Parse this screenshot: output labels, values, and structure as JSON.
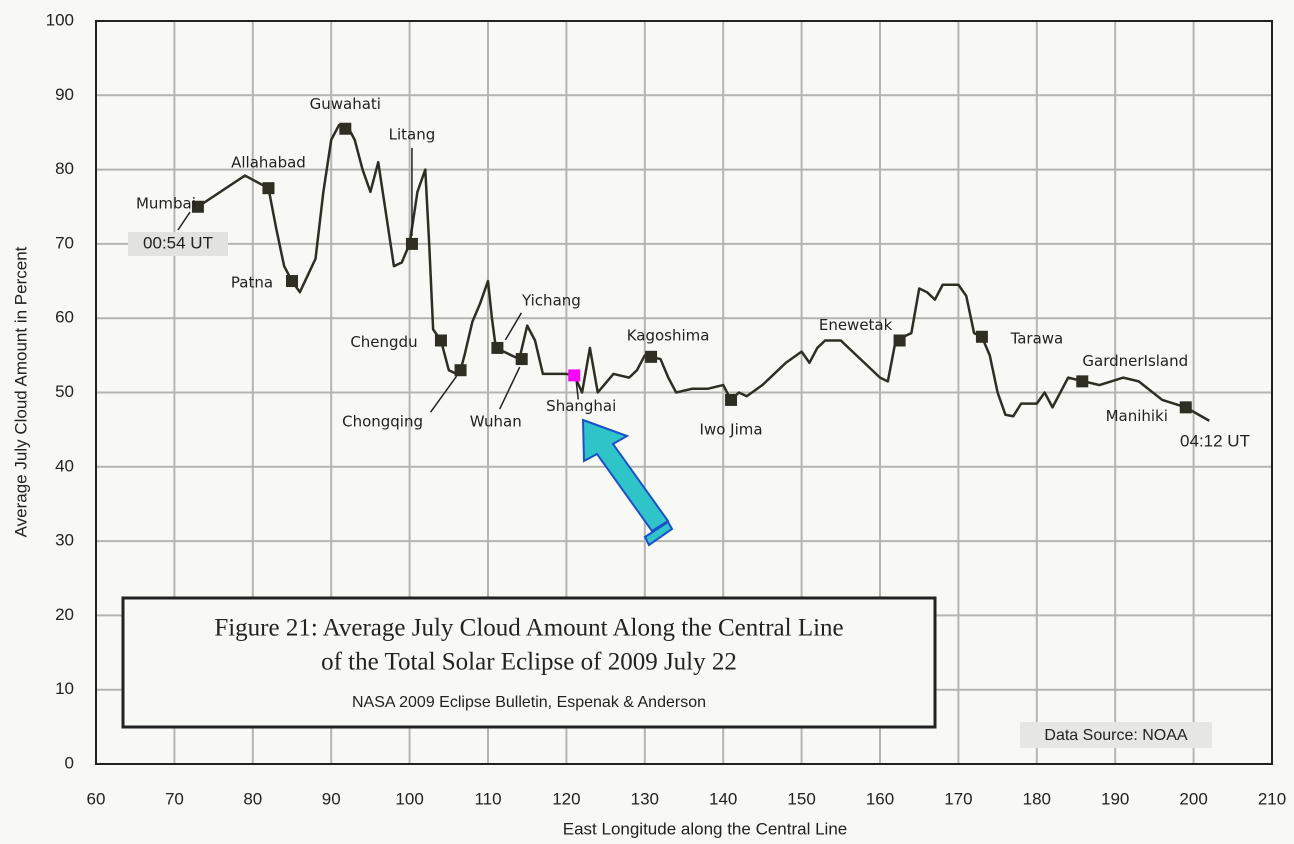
{
  "chart_data": {
    "type": "line",
    "xlabel": "East Longitude along the Central Line",
    "ylabel": "Average July Cloud Amount in Percent",
    "xlim": [
      60,
      210
    ],
    "xticks": [
      60,
      70,
      80,
      90,
      100,
      110,
      120,
      130,
      140,
      150,
      160,
      170,
      180,
      190,
      200,
      210
    ],
    "ylim": [
      0,
      100
    ],
    "yticks": [
      0,
      10,
      20,
      30,
      40,
      50,
      60,
      70,
      80,
      90,
      100
    ],
    "grid": true,
    "x": [
      73,
      79,
      82,
      83,
      84,
      85,
      86,
      88,
      89,
      90,
      91,
      92,
      93,
      94,
      95,
      96,
      97,
      98,
      99,
      100,
      101,
      102,
      102.5,
      103,
      104,
      105,
      106,
      106.5,
      107,
      108,
      109,
      110,
      110.5,
      111,
      112,
      113,
      114,
      115,
      116,
      117,
      120,
      121,
      122,
      123,
      124,
      126,
      128,
      129,
      130,
      132,
      133,
      134,
      136,
      138,
      140,
      141,
      142,
      143,
      145,
      147,
      148,
      150,
      151,
      152,
      153,
      155,
      157,
      158,
      160,
      161,
      162,
      163,
      164,
      165,
      166,
      167,
      168,
      170,
      171,
      172,
      173,
      174,
      175,
      176,
      177,
      178,
      180,
      181,
      182,
      184,
      186,
      188,
      191,
      193,
      196,
      199,
      202
    ],
    "series": [
      {
        "color": "#2e2e22",
        "values": [
          75,
          79.2,
          77.5,
          72,
          67,
          65,
          63.5,
          68,
          77,
          84,
          86,
          86,
          84,
          80,
          77,
          81,
          74,
          67,
          67.5,
          70,
          77,
          80,
          70,
          58.5,
          57,
          53,
          52.5,
          53,
          55,
          59.5,
          62,
          65,
          60,
          56,
          55.5,
          55,
          54.5,
          59,
          57,
          52.5,
          52.5,
          52.3,
          50,
          56,
          50,
          52.5,
          52,
          53,
          55,
          54.5,
          52,
          50,
          50.5,
          50.5,
          51,
          49,
          50,
          49.5,
          51,
          53,
          54,
          55.5,
          54,
          56,
          57,
          57,
          55,
          54,
          52,
          51.5,
          57,
          57.5,
          58,
          64,
          63.5,
          62.5,
          64.5,
          64.5,
          63,
          58,
          57.5,
          55,
          50,
          47,
          46.8,
          48.5,
          48.5,
          50,
          48,
          52,
          51.5,
          51,
          52,
          51.5,
          49,
          48,
          46.2
        ]
      }
    ],
    "points": [
      {
        "label": "Mumbai",
        "x": 73,
        "y": 75
      },
      {
        "label": "Allahabad",
        "x": 82,
        "y": 77.5
      },
      {
        "label": "Patna",
        "x": 85,
        "y": 65
      },
      {
        "label": "Guwahati",
        "x": 91.8,
        "y": 85.5
      },
      {
        "label": "Litang",
        "x": 100.3,
        "y": 70
      },
      {
        "label": "Chengdu",
        "x": 104,
        "y": 57
      },
      {
        "label": "Chongqing",
        "x": 106.5,
        "y": 53
      },
      {
        "label": "Wuhan",
        "x": 114.3,
        "y": 54.5
      },
      {
        "label": "Yichang",
        "x": 111.2,
        "y": 56
      },
      {
        "label": "Shanghai",
        "x": 121,
        "y": 52.3,
        "color": "#ff00ff"
      },
      {
        "label": "Kagoshima",
        "x": 130.8,
        "y": 54.8
      },
      {
        "label": "Iwo Jima",
        "x": 141,
        "y": 49
      },
      {
        "label": "Enewetak",
        "x": 162.5,
        "y": 57
      },
      {
        "label": "Tarawa",
        "x": 173,
        "y": 57.5
      },
      {
        "label": "GardnerIsland",
        "x": 185.8,
        "y": 51.5
      },
      {
        "label": "Manihiki",
        "x": 199,
        "y": 48
      }
    ],
    "start_label": "00:54 UT",
    "end_label": "04:12 UT",
    "caption": [
      "Figure 21: Average July Cloud Amount Along the Central Line",
      "of the Total Solar Eclipse of 2009 July 22"
    ],
    "credit": "NASA 2009 Eclipse Bulletin, Espenak & Anderson",
    "source": "Data Source: NOAA"
  }
}
